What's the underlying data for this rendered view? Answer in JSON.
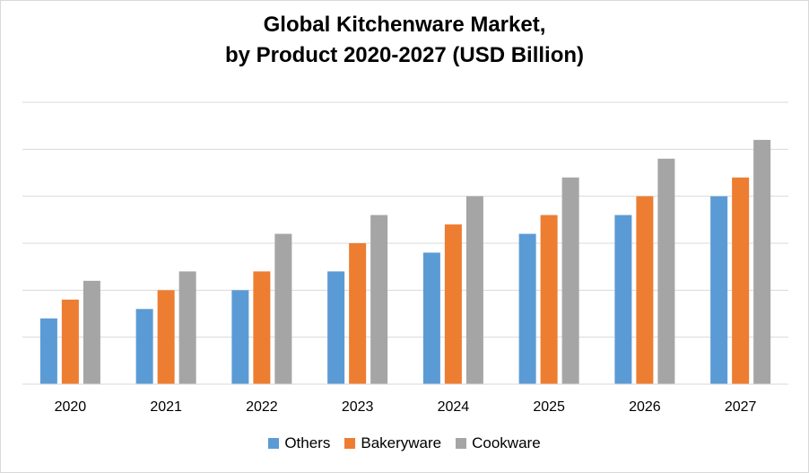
{
  "chart_data": {
    "type": "bar",
    "title": "Global Kitchenware Market,",
    "subtitle": "by Product 2020-2027 (USD Billion)",
    "xlabel": "",
    "ylabel": "",
    "categories": [
      "2020",
      "2021",
      "2022",
      "2023",
      "2024",
      "2025",
      "2026",
      "2027"
    ],
    "series": [
      {
        "name": "Others",
        "color": "#5b9bd5",
        "values": [
          14,
          16,
          20,
          24,
          28,
          32,
          36,
          40
        ]
      },
      {
        "name": "Bakeryware",
        "color": "#ed7d31",
        "values": [
          18,
          20,
          24,
          30,
          34,
          36,
          40,
          44
        ]
      },
      {
        "name": "Cookware",
        "color": "#a5a5a5",
        "values": [
          22,
          24,
          32,
          36,
          40,
          44,
          48,
          52
        ]
      }
    ],
    "ylim": [
      0,
      60
    ],
    "gridlines": true,
    "y_tick_labels_visible": false,
    "legend_position": "bottom"
  }
}
